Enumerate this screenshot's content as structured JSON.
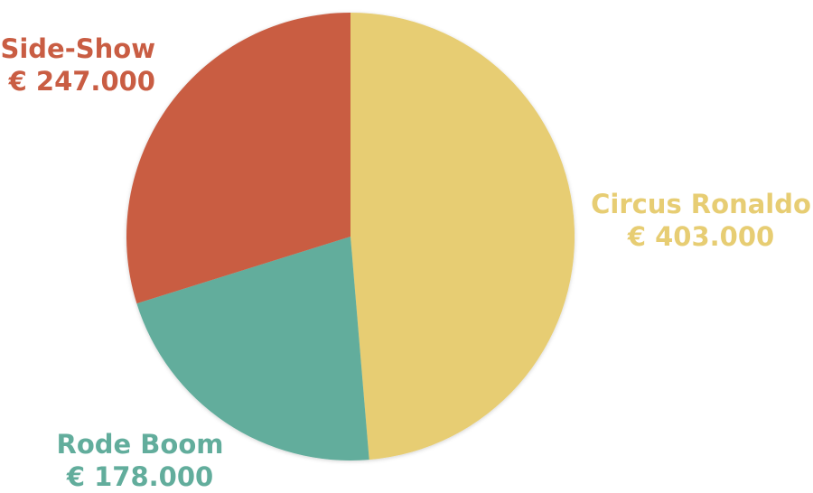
{
  "chart_data": {
    "type": "pie",
    "title": "",
    "start_angle_deg": 0,
    "direction": "clockwise",
    "slices": [
      {
        "name": "Circus Ronaldo",
        "value": 403000,
        "value_label": "€ 403.000",
        "color": "#E7CD73"
      },
      {
        "name": "Rode Boom",
        "value": 178000,
        "value_label": "€ 178.000",
        "color": "#62AD9C"
      },
      {
        "name": "Side-Show",
        "value": 247000,
        "value_label": "€ 247.000",
        "color": "#C95D43"
      }
    ]
  }
}
